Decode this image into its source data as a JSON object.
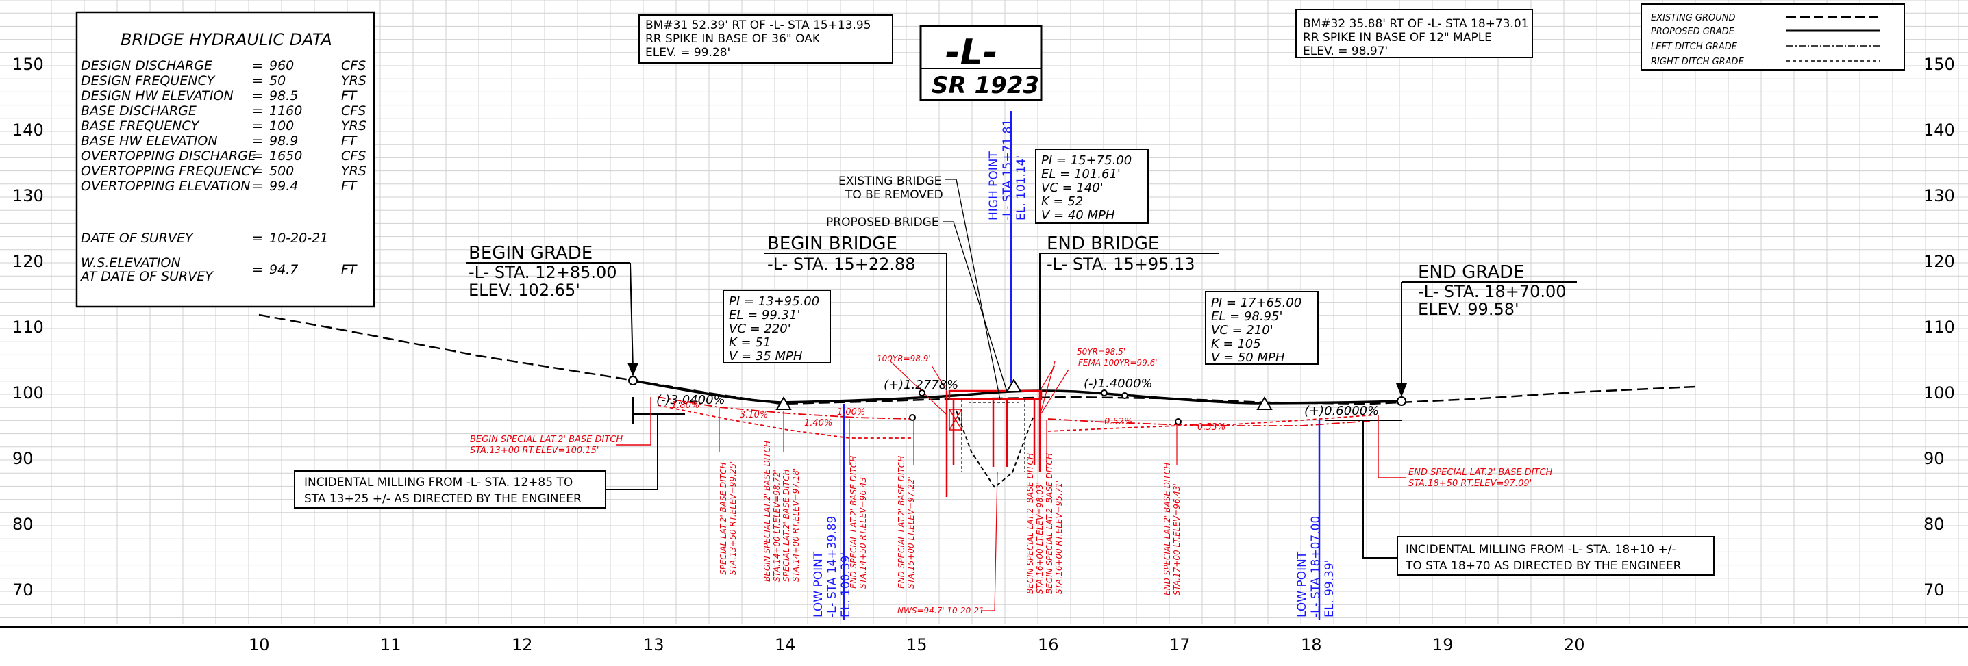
{
  "axes": {
    "elevation_left": [
      "150",
      "140",
      "130",
      "120",
      "110",
      "100",
      "90",
      "80",
      "70"
    ],
    "elevation_right": [
      "150",
      "140",
      "130",
      "120",
      "110",
      "100",
      "90",
      "80",
      "70"
    ],
    "stations": [
      "10",
      "11",
      "12",
      "13",
      "14",
      "15",
      "16",
      "17",
      "18",
      "19",
      "20"
    ]
  },
  "hydraulic_table": {
    "title": "BRIDGE HYDRAULIC DATA",
    "rows": [
      {
        "label": "DESIGN DISCHARGE",
        "eq": "=",
        "value": "960",
        "unit": "CFS"
      },
      {
        "label": "DESIGN FREQUENCY",
        "eq": "=",
        "value": "50",
        "unit": "YRS"
      },
      {
        "label": "DESIGN HW ELEVATION",
        "eq": "=",
        "value": "98.5",
        "unit": "FT"
      },
      {
        "label": "BASE DISCHARGE",
        "eq": "=",
        "value": "1160",
        "unit": "CFS"
      },
      {
        "label": "BASE FREQUENCY",
        "eq": "=",
        "value": "100",
        "unit": "YRS"
      },
      {
        "label": "BASE HW ELEVATION",
        "eq": "=",
        "value": "98.9",
        "unit": "FT"
      },
      {
        "label": "OVERTOPPING DISCHARGE",
        "eq": "=",
        "value": "1650",
        "unit": "CFS"
      },
      {
        "label": "OVERTOPPING FREQUENCY",
        "eq": "=",
        "value": "500",
        "unit": "YRS"
      },
      {
        "label": "OVERTOPPING ELEVATION",
        "eq": "=",
        "value": "99.4",
        "unit": "FT"
      }
    ],
    "survey_date_label": "DATE OF SURVEY",
    "survey_date_eq": "=",
    "survey_date": "10-20-21",
    "ws_label_1": "W.S.ELEVATION",
    "ws_label_2": "AT DATE OF SURVEY",
    "ws_eq": "=",
    "ws_value": "94.7",
    "ws_unit": "FT"
  },
  "benchmarks": [
    {
      "line1": "BM#31 52.39' RT OF -L- STA 15+13.95",
      "line2": "RR SPIKE IN BASE OF 36\" OAK",
      "line3": "ELEV. = 99.28'"
    },
    {
      "line1": "BM#32 35.88' RT OF -L- STA 18+73.01",
      "line2": "RR SPIKE IN BASE OF 12\" MAPLE",
      "line3": "ELEV. = 98.97'"
    }
  ],
  "route": {
    "alignment": "-L-",
    "road": "SR 1923"
  },
  "legend": {
    "items": [
      {
        "label": "EXISTING GROUND",
        "style": "dashed-long"
      },
      {
        "label": "PROPOSED GRADE",
        "style": "solid"
      },
      {
        "label": "LEFT DITCH GRADE",
        "style": "dash-dot"
      },
      {
        "label": "RIGHT DITCH GRADE",
        "style": "dashed-fine"
      }
    ]
  },
  "callouts": {
    "begin_grade": {
      "title": "BEGIN GRADE",
      "line1": "-L- STA. 12+85.00",
      "line2": "ELEV. 102.65'"
    },
    "end_grade": {
      "title": "END GRADE",
      "line1": "-L- STA. 18+70.00",
      "line2": "ELEV. 99.58'"
    },
    "begin_bridge": {
      "title": "BEGIN BRIDGE",
      "line1": "-L- STA. 15+22.88"
    },
    "end_bridge": {
      "title": "END BRIDGE",
      "line1": "-L- STA. 15+95.13"
    },
    "existing_bridge_1": "EXISTING BRIDGE",
    "existing_bridge_2": "TO BE REMOVED",
    "proposed_bridge": "PROPOSED BRIDGE"
  },
  "vertical_curves": [
    {
      "pi": "PI = 13+95.00",
      "el": "EL = 99.31'",
      "vc": "VC = 220'",
      "k": "K = 51",
      "v": "V = 35 MPH"
    },
    {
      "pi": "PI = 15+75.00",
      "el": "EL = 101.61'",
      "vc": "VC = 140'",
      "k": "K = 52",
      "v": "V = 40 MPH"
    },
    {
      "pi": "PI = 17+65.00",
      "el": "EL = 98.95'",
      "vc": "VC = 210'",
      "k": "K = 105",
      "v": "V = 50 MPH"
    }
  ],
  "grades": [
    "(-)3.0400%",
    "(+)1.2778%",
    "(-)1.4000%",
    "(+)0.6000%"
  ],
  "milling": [
    {
      "line1": "INCIDENTAL MILLING FROM -L- STA. 12+85 TO",
      "line2": "STA 13+25 +/- AS DIRECTED BY THE ENGINEER"
    },
    {
      "line1": "INCIDENTAL MILLING FROM -L- STA. 18+10 +/-",
      "line2": "TO STA 18+70 AS DIRECTED BY THE ENGINEER"
    }
  ],
  "points": {
    "high": {
      "title": "HIGH POINT",
      "sta": "-L- STA 15+71.81",
      "el": "EL. 101.14'"
    },
    "low1": {
      "title": "LOW POINT",
      "sta": "-L- STA 14+39.89",
      "el": "EL. 100.39'"
    },
    "low2": {
      "title": "LOW POINT",
      "sta": "-L- STA 18+07.00",
      "el": "EL. 99.39'"
    }
  },
  "red_notes": {
    "begin_ditch_1": "BEGIN SPECIAL LAT.2' BASE DITCH",
    "begin_ditch_2": "STA.13+00 RT.ELEV=100.15'",
    "end_ditch_1": "END SPECIAL LAT.2' BASE DITCH",
    "end_ditch_2": "STA.18+50 RT.ELEV=97.09'",
    "hw100": "100YR=98.9'",
    "hw50": "50YR=98.5'",
    "fema": "FEMA 100YR=99.6'",
    "nws": "NWS=94.7' 10-20-21",
    "ditch_grades": [
      "1.80%",
      "3.10%",
      "1.40%",
      "1.00%",
      "0.52%",
      "0.53%"
    ],
    "vertical_notes": [
      "SPECIAL LAT.2' BASE DITCH",
      "STA.13+50 RT.ELEV=99.25'",
      "BEGIN SPECIAL LAT.2' BASE DITCH",
      "STA.14+00 LT.ELEV=98.72'",
      "SPECIAL LAT.2' BASE DITCH",
      "STA.14+00 RT.ELEV=97.18'",
      "END SPECIAL LAT.2' BASE DITCH",
      "STA.14+50 RT.ELEV=96.43'",
      "END SPECIAL LAT.2' BASE DITCH",
      "STA.15+00 LT.ELEV=97.22'",
      "BEGIN SPECIAL LAT.2' BASE DITCH",
      "STA.16+00 LT.ELEV=98.03'",
      "BEGIN SPECIAL LAT.2' BASE DITCH",
      "STA.16+00 RT.ELEV=95.71'",
      "END SPECIAL LAT.2' BASE DITCH",
      "STA.17+00 LT.ELEV=96.43'"
    ]
  }
}
